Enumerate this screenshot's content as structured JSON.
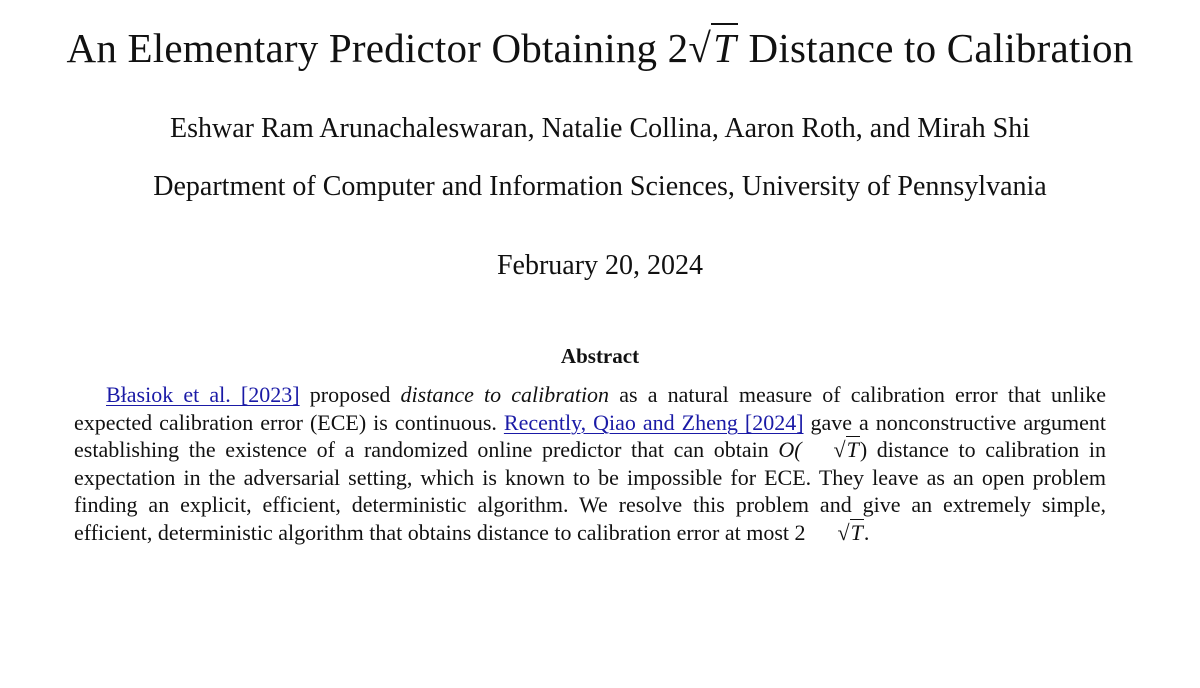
{
  "paper": {
    "title": {
      "before": "An Elementary Predictor Obtaining 2",
      "sqrt_symbol": "√",
      "sqrt_var": "T",
      "after": " Distance to Calibration"
    },
    "authors": "Eshwar Ram Arunachaleswaran, Natalie Collina, Aaron Roth, and Mirah Shi",
    "affiliation": "Department of Computer and Information Sciences, University of Pennsylvania",
    "date": "February 20, 2024"
  },
  "abstract": {
    "heading": "Abstract",
    "cite1": "Błasiok et al. [2023]",
    "text1": " proposed ",
    "emph1": "distance to calibration",
    "text2": " as a natural measure of calibration error that unlike expected calibration error (ECE) is continuous. ",
    "cite2": "Recently, Qiao and Zheng [2024]",
    "text3": " gave a non­constructive argument establishing the existence of a randomized online predictor that can obtain ",
    "math1_prefix": "O(",
    "math1_var": "T",
    "math1_suffix": ")",
    "text4": " distance to calibration in expectation in the adversarial setting, which is known to be impossible for ECE. They leave as an open problem finding an explicit, efficient, deterministic algorithm. We resolve this problem and give an extremely simple, efficient, deterministic algorithm that obtains distance to calibration error at most ",
    "math2_prefix": "2",
    "math2_var": "T",
    "text5": "."
  }
}
